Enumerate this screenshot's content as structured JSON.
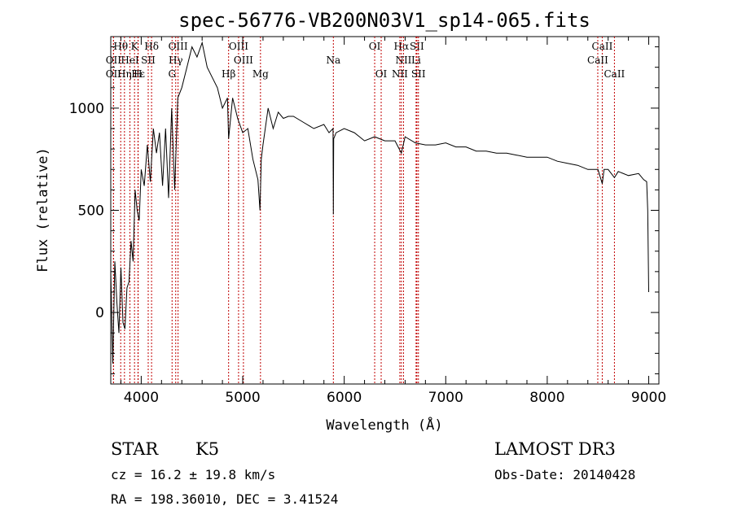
{
  "chart_data": {
    "type": "line",
    "title": "spec-56776-VB200N03V1_sp14-065.fits",
    "xlabel": "Wavelength (Å)",
    "ylabel": "Flux (relative)",
    "xlim": [
      3700,
      9100
    ],
    "ylim": [
      -350,
      1350
    ],
    "x_ticks": [
      4000,
      5000,
      6000,
      7000,
      8000,
      9000
    ],
    "x_tick_labels": [
      "4000",
      "5000",
      "6000",
      "7000",
      "8000",
      "9000"
    ],
    "y_ticks": [
      0,
      500,
      1000
    ],
    "y_tick_labels": [
      "0",
      "500",
      "1000"
    ],
    "grid": false,
    "line_color": "#000000",
    "marker_color": "#c00000",
    "series": [
      {
        "x": [
          3700,
          3720,
          3740,
          3760,
          3780,
          3800,
          3820,
          3840,
          3860,
          3880,
          3900,
          3920,
          3940,
          3960,
          3980,
          4000,
          4030,
          4060,
          4090,
          4120,
          4150,
          4180,
          4210,
          4240,
          4270,
          4300,
          4330,
          4360,
          4400,
          4450,
          4500,
          4550,
          4600,
          4650,
          4700,
          4750,
          4800,
          4850,
          4861,
          4900,
          4950,
          5000,
          5050,
          5100,
          5150,
          5170,
          5183,
          5200,
          5250,
          5300,
          5350,
          5400,
          5450,
          5500,
          5600,
          5700,
          5800,
          5850,
          5890,
          5893,
          5896,
          5920,
          6000,
          6100,
          6200,
          6300,
          6400,
          6500,
          6563,
          6600,
          6700,
          6800,
          6900,
          7000,
          7100,
          7200,
          7300,
          7400,
          7500,
          7600,
          7700,
          7800,
          7900,
          8000,
          8100,
          8200,
          8300,
          8400,
          8500,
          8542,
          8560,
          8600,
          8662,
          8700,
          8800,
          8900,
          8950,
          8980,
          8990,
          9000
        ],
        "y": [
          200,
          -250,
          250,
          50,
          -100,
          220,
          -50,
          -80,
          120,
          150,
          350,
          250,
          600,
          500,
          450,
          700,
          620,
          820,
          640,
          900,
          780,
          880,
          620,
          900,
          560,
          1000,
          600,
          1050,
          1100,
          1200,
          1300,
          1250,
          1320,
          1200,
          1150,
          1100,
          1000,
          1050,
          850,
          1050,
          950,
          880,
          900,
          750,
          650,
          500,
          750,
          820,
          1000,
          900,
          980,
          950,
          960,
          960,
          930,
          900,
          920,
          880,
          900,
          480,
          850,
          880,
          900,
          880,
          840,
          860,
          840,
          840,
          780,
          860,
          830,
          820,
          820,
          830,
          810,
          810,
          790,
          790,
          780,
          780,
          770,
          760,
          760,
          760,
          740,
          730,
          720,
          700,
          700,
          630,
          700,
          700,
          660,
          690,
          670,
          680,
          650,
          640,
          500,
          100
        ]
      }
    ],
    "line_markers": [
      {
        "label": "Hθ",
        "x": 3798,
        "row": 1
      },
      {
        "label": "K",
        "x": 3934,
        "row": 1
      },
      {
        "label": "Hδ",
        "x": 4102,
        "row": 1
      },
      {
        "label": "OIII",
        "x": 4363,
        "row": 1
      },
      {
        "label": "OIII",
        "x": 4959,
        "row": 1
      },
      {
        "label": "OI",
        "x": 6300,
        "row": 1
      },
      {
        "label": "Hα",
        "x": 6563,
        "row": 1
      },
      {
        "label": "SII",
        "x": 6716,
        "row": 1
      },
      {
        "label": "CaII",
        "x": 8542,
        "row": 1
      },
      {
        "label": "OII",
        "x": 3727,
        "row": 2
      },
      {
        "label": "HeI",
        "x": 3889,
        "row": 2
      },
      {
        "label": "SII",
        "x": 4069,
        "row": 2
      },
      {
        "label": "Hγ",
        "x": 4340,
        "row": 2
      },
      {
        "label": "OIII",
        "x": 5007,
        "row": 2
      },
      {
        "label": "Na",
        "x": 5893,
        "row": 2
      },
      {
        "label": "NII",
        "x": 6584,
        "row": 2
      },
      {
        "label": "Li",
        "x": 6708,
        "row": 2
      },
      {
        "label": "CaII",
        "x": 8498,
        "row": 2
      },
      {
        "label": "OII",
        "x": 3727,
        "row": 3
      },
      {
        "label": "Hε",
        "x": 3970,
        "row": 3
      },
      {
        "label": "Hη",
        "x": 3835,
        "row": 3
      },
      {
        "label": "H",
        "x": 3968,
        "row": 3
      },
      {
        "label": "G",
        "x": 4304,
        "row": 3
      },
      {
        "label": "Hβ",
        "x": 4861,
        "row": 3
      },
      {
        "label": "Mg",
        "x": 5175,
        "row": 3
      },
      {
        "label": "OI",
        "x": 6364,
        "row": 3
      },
      {
        "label": "NII",
        "x": 6548,
        "row": 3
      },
      {
        "label": "SII",
        "x": 6731,
        "row": 3
      },
      {
        "label": "CaII",
        "x": 8662,
        "row": 3
      }
    ]
  },
  "info": {
    "class_label": "STAR",
    "subclass": "K5",
    "survey": "LAMOST DR3",
    "cz": "cz = 16.2 ± 19.8 km/s",
    "obs_date": "Obs-Date: 20140428",
    "coords": "RA = 198.36010, DEC =    3.41524"
  }
}
